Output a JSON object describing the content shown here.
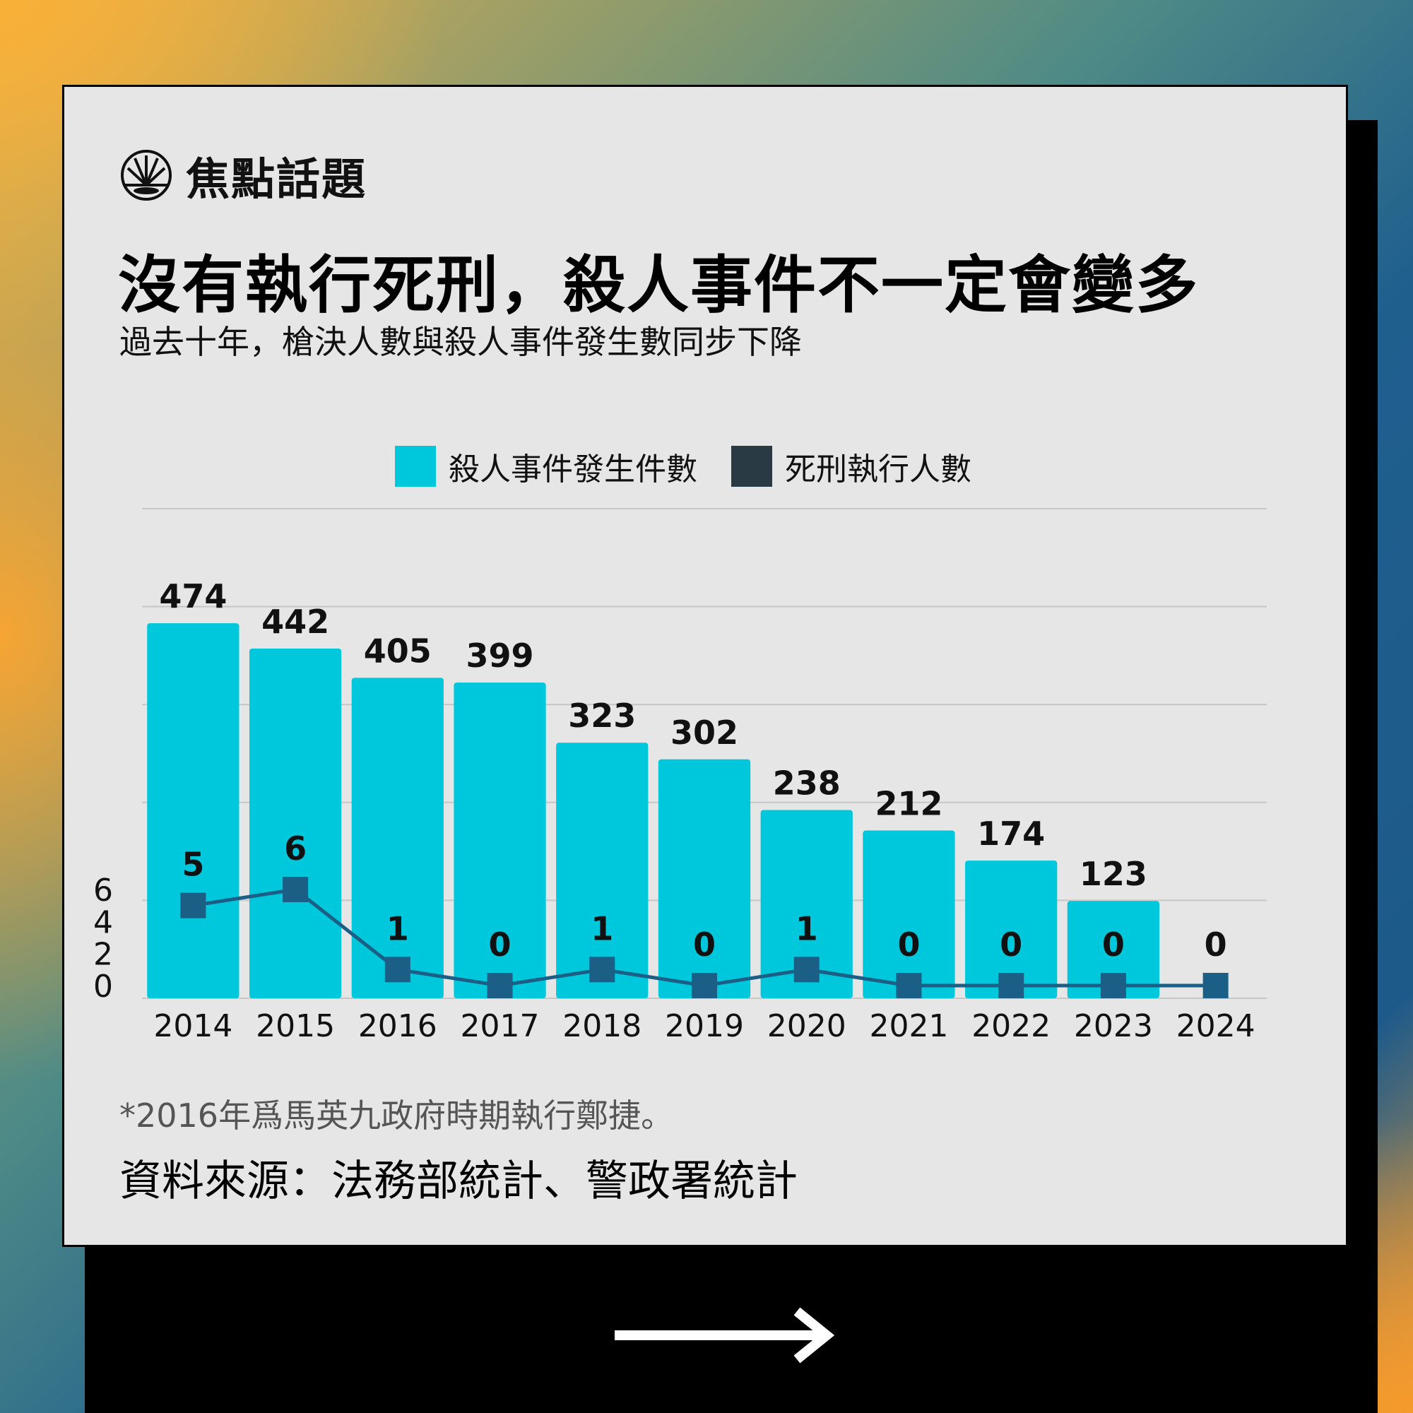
{
  "brand": {
    "name": "焦點話題",
    "logo_icon": "sunrise-icon"
  },
  "title": "沒有執行死刑，殺人事件不一定會變多",
  "subtitle": "過去十年，槍決人數與殺人事件發生數同步下降",
  "legend": {
    "homicide": "殺人事件發生件數",
    "executions": "死刑執行人數"
  },
  "note": "*2016年爲馬英九政府時期執行鄭捷。",
  "source": "資料來源：法務部統計、警政署統計",
  "nav": {
    "next_icon": "arrow-right-icon"
  },
  "colors": {
    "bar": "#00c8dc",
    "line": "#1b5f86",
    "marker": "#1b5f86",
    "legend_dark": "#2a3a44"
  },
  "chart_data": {
    "type": "bar",
    "categories": [
      "2014",
      "2015",
      "2016",
      "2017",
      "2018",
      "2019",
      "2020",
      "2021",
      "2022",
      "2023",
      "2024"
    ],
    "series": [
      {
        "name": "殺人事件發生件數",
        "type": "bar",
        "values": [
          474,
          442,
          405,
          399,
          323,
          302,
          238,
          212,
          174,
          123,
          null
        ]
      },
      {
        "name": "死刑執行人數",
        "type": "line",
        "values": [
          5,
          6,
          1,
          0,
          1,
          0,
          1,
          0,
          0,
          0,
          0
        ]
      }
    ],
    "bar_axis": {
      "ylim": [
        0,
        500
      ]
    },
    "line_axis": {
      "ylim": [
        0,
        6
      ],
      "ticks": [
        "6",
        "4",
        "2",
        "0"
      ]
    },
    "grid": true,
    "legend_position": "top"
  }
}
